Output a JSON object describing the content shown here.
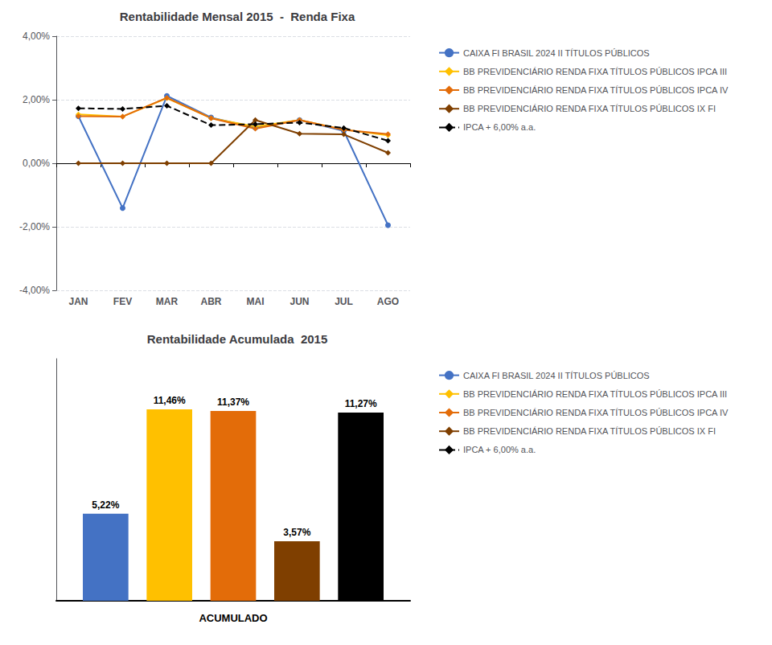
{
  "chart_data": [
    {
      "type": "line",
      "title": "Rentabilidade Mensal 2015  -  Renda Fixa",
      "categories": [
        "JAN",
        "FEV",
        "MAR",
        "ABR",
        "MAI",
        "JUN",
        "JUL",
        "AGO"
      ],
      "series": [
        {
          "name": "CAIXA FI BRASIL 2024 II TÍTULOS PÚBLICOS",
          "color": "#4472C4",
          "marker": "circle",
          "line_style": "solid",
          "values": [
            1.48,
            -1.41,
            2.12,
            1.44,
            1.12,
            1.36,
            1.02,
            -1.95
          ]
        },
        {
          "name": "BB PREVIDENCIÁRIO RENDA FIXA TÍTULOS PÚBLICOS IPCA III",
          "color": "#FFC000",
          "marker": "diamond",
          "line_style": "solid",
          "values": [
            1.54,
            1.47,
            2.05,
            1.42,
            1.15,
            1.36,
            1.06,
            0.88
          ]
        },
        {
          "name": "BB PREVIDENCIÁRIO RENDA FIXA TÍTULOS PÚBLICOS IPCA IV",
          "color": "#E36C09",
          "marker": "diamond",
          "line_style": "solid",
          "values": [
            1.48,
            1.47,
            2.06,
            1.42,
            1.09,
            1.36,
            1.05,
            0.92
          ]
        },
        {
          "name": "BB PREVIDENCIÁRIO RENDA FIXA TÍTULOS PÚBLICOS IX FI",
          "color": "#7F3F00",
          "marker": "diamond",
          "line_style": "solid",
          "values": [
            0.0,
            0.0,
            0.0,
            0.0,
            1.36,
            0.93,
            0.91,
            0.33
          ]
        },
        {
          "name": "IPCA + 6,00% a.a.",
          "color": "#000000",
          "marker": "diamond",
          "line_style": "dashed",
          "values": [
            1.73,
            1.71,
            1.81,
            1.2,
            1.23,
            1.28,
            1.11,
            0.71
          ]
        }
      ],
      "ylim": [
        -4.0,
        4.0
      ],
      "yticks": [
        {
          "value": -4.0,
          "label": "-4,00%"
        },
        {
          "value": -2.0,
          "label": "-2,00%"
        },
        {
          "value": 0.0,
          "label": "0,00%"
        },
        {
          "value": 2.0,
          "label": "2,00%"
        },
        {
          "value": 4.0,
          "label": "4,00%"
        }
      ],
      "grid": true,
      "legend": "right"
    },
    {
      "type": "bar",
      "title": "Rentabilidade Acumulada  2015",
      "x_label": "ACUMULADO",
      "categories": [
        null
      ],
      "series": [
        {
          "name": "CAIXA FI BRASIL 2024 II TÍTULOS PÚBLICOS",
          "color": "#4472C4",
          "values": [
            5.22
          ],
          "value_labels": [
            "5,22%"
          ]
        },
        {
          "name": "BB PREVIDENCIÁRIO RENDA FIXA TÍTULOS PÚBLICOS IPCA III",
          "color": "#FFC000",
          "values": [
            11.46
          ],
          "value_labels": [
            "11,46%"
          ]
        },
        {
          "name": "BB PREVIDENCIÁRIO RENDA FIXA TÍTULOS PÚBLICOS IPCA IV",
          "color": "#E36C09",
          "values": [
            11.37
          ],
          "value_labels": [
            "11,37%"
          ]
        },
        {
          "name": "BB PREVIDENCIÁRIO RENDA FIXA TÍTULOS PÚBLICOS IX FI",
          "color": "#7F3F00",
          "values": [
            3.57
          ],
          "value_labels": [
            "3,57%"
          ]
        },
        {
          "name": "IPCA + 6,00% a.a.",
          "color": "#000000",
          "values": [
            11.27
          ],
          "value_labels": [
            "11,27%"
          ]
        }
      ],
      "ylim": [
        0,
        14.5
      ],
      "tick_labels": false,
      "grid": false,
      "data_labels": true,
      "legend": "right"
    }
  ]
}
